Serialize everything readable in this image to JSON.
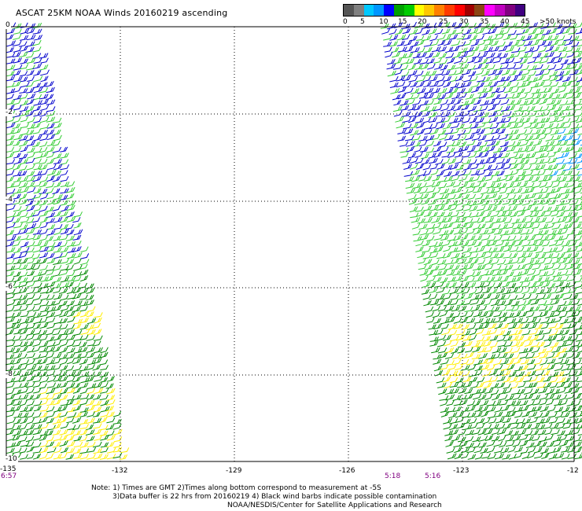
{
  "title": "ASCAT 25KM NOAA Winds 20160219 ascending",
  "legend": {
    "labels": [
      "0",
      "5",
      "10",
      "15",
      "20",
      "25",
      "30",
      "35",
      "40",
      "45",
      ">50 knots"
    ],
    "colors": [
      "#555555",
      "#808080",
      "#00c8ff",
      "#0096ff",
      "#0000ff",
      "#00a000",
      "#00cc00",
      "#ffff00",
      "#ffc800",
      "#ff8000",
      "#ff3c00",
      "#ff0000",
      "#a00000",
      "#8b4513",
      "#ff00ff",
      "#c000c0",
      "#800080",
      "#400080"
    ]
  },
  "axes": {
    "x_ticks": [
      "-135",
      "-132",
      "-129",
      "-126",
      "-123",
      "-12"
    ],
    "y_ticks": [
      "0",
      "-2",
      "-4",
      "-6",
      "-8",
      "-10"
    ]
  },
  "times": {
    "left": "6:57",
    "middle_a": "5:18",
    "middle_b": "5:16"
  },
  "notes": {
    "line1": "Note: 1) Times are GMT 2)Times along bottom correspond to measurement at -5S",
    "line2": "3)Data buffer is 22 hrs from 20160219 4) Black wind barbs indicate possible contamination",
    "line3": "NOAA/NESDIS/Center for Satellite Applications and Research"
  },
  "wind_colors": {
    "blue": "#0000cc",
    "light_blue": "#0096ff",
    "light_green": "#33cc33",
    "dark_green": "#008800",
    "yellow": "#ffee00"
  }
}
